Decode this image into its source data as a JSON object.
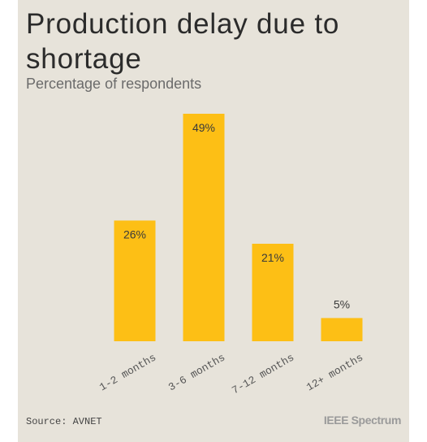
{
  "chart_data": {
    "type": "bar",
    "title": "Production delay due to shortage",
    "subtitle": "Percentage of respondents",
    "categories": [
      "1-2 months",
      "3-6 months",
      "7-12 months",
      "12+ months"
    ],
    "values": [
      26,
      49,
      21,
      5
    ],
    "data_labels": [
      "26%",
      "49%",
      "21%",
      "5%"
    ],
    "ylim": [
      0,
      49
    ],
    "grid": false,
    "legend": "none",
    "bar_color": "#fdbf15",
    "background_color": "#e7e3da"
  },
  "footer": {
    "source": "Source: AVNET",
    "brand": "IEEE Spectrum"
  }
}
